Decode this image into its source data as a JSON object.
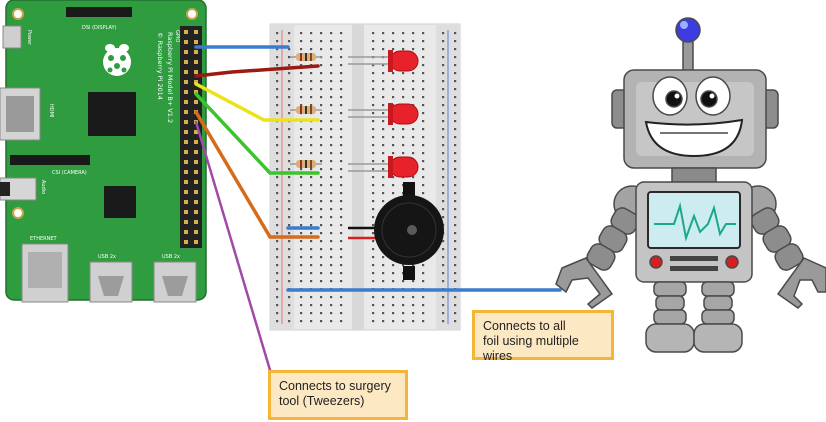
{
  "raspberry_pi": {
    "model_text": "Raspberry Pi Model B+ V1.2",
    "copyright_text": "© Raspberry Pi 2014",
    "dsi_label": "DSI (DISPLAY)",
    "csi_label": "CSI (CAMERA)",
    "hdmi_label": "HDMI",
    "power_label": "Power",
    "audio_label": "Audio",
    "ethernet_label": "ETHERNET",
    "usb_label_1": "USB 2x",
    "usb_label_2": "USB 2x",
    "gpio_label": "GPIO",
    "board_color": "#2e9c3f"
  },
  "wires": {
    "blue": "#3c7ccc",
    "red": "#9c1a12",
    "yellow": "#ece21a",
    "green": "#3cc42c",
    "orange": "#d56c1c",
    "purple": "#a04aa6"
  },
  "callouts": {
    "foil": {
      "line1": "Connects to all",
      "line2": "foil using multiple",
      "line3": "wires"
    },
    "tweezers": {
      "line1": "Connects to surgery",
      "line2": "tool (Tweezers)"
    }
  },
  "components": {
    "led_color": "#e8222a",
    "buzzer_color": "#111111"
  }
}
